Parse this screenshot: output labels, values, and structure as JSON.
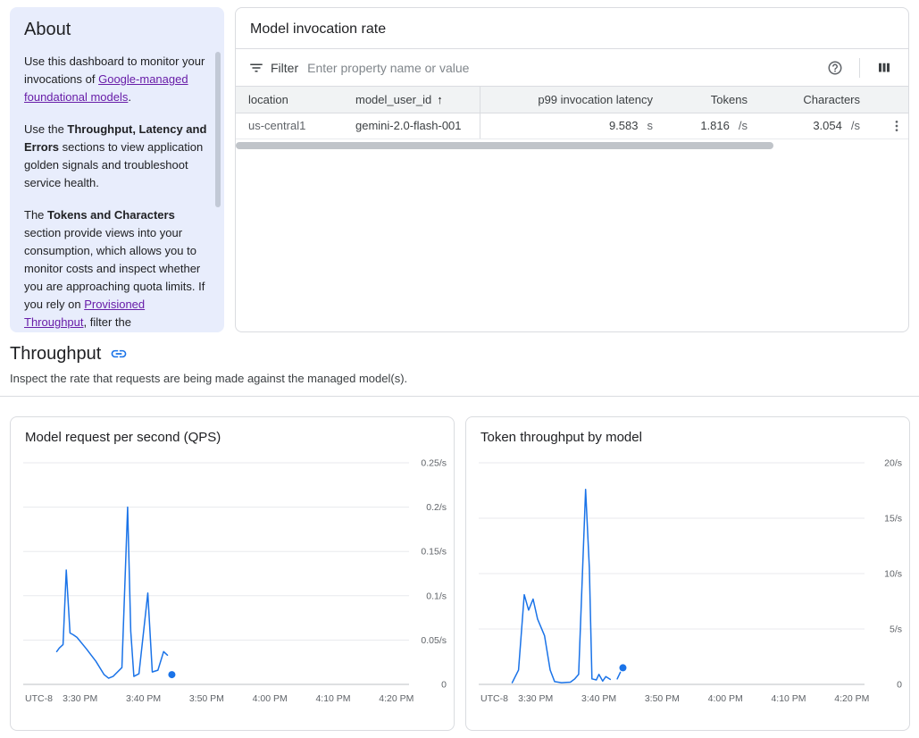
{
  "about": {
    "title": "About",
    "p1": {
      "prefix": "Use this dashboard to monitor your invocations of ",
      "link": "Google-managed foundational models",
      "suffix": "."
    },
    "p2": {
      "prefix": "Use the ",
      "bold": "Throughput, Latency and Errors",
      "suffix": " sections to view application golden signals and troubleshoot service health."
    },
    "p3": {
      "prefix": "The ",
      "bold": "Tokens and Characters",
      "mid": " section provide views into your consumption, which allows you to monitor costs and inspect whether you are approaching quota limits. If you rely on ",
      "link": "Provisioned Throughput",
      "suffix": ", filter the"
    }
  },
  "invocation": {
    "title": "Model invocation rate",
    "filter": {
      "label": "Filter",
      "placeholder": "Enter property name or value"
    },
    "table": {
      "headers": [
        "location",
        "model_user_id",
        "p99 invocation latency",
        "Tokens",
        "Characters"
      ],
      "sort_icon": "↑",
      "row": {
        "location": "us-central1",
        "model": "gemini-2.0-flash-001",
        "p99_value": "9.583",
        "p99_unit": "s",
        "tokens_value": "1.816",
        "tokens_unit": "/s",
        "chars_value": "3.054",
        "chars_unit": "/s"
      }
    }
  },
  "throughput": {
    "title": "Throughput",
    "description": "Inspect the rate that requests are being made against the managed model(s)."
  },
  "colors": {
    "accent_blue": "#1a73e8",
    "link_purple": "#681da8",
    "about_bg": "#e8edfc",
    "table_header_bg": "#f1f3f4"
  },
  "chart_data": [
    {
      "type": "line",
      "title": "Model request per second (QPS)",
      "tz_label": "UTC-8",
      "x_unit": "minutes after 3:00 PM",
      "xlim": [
        21,
        82
      ],
      "ylim": [
        0,
        0.25
      ],
      "x_ticks": [
        {
          "v": 30,
          "label": "3:30 PM"
        },
        {
          "v": 40,
          "label": "3:40 PM"
        },
        {
          "v": 50,
          "label": "3:50 PM"
        },
        {
          "v": 60,
          "label": "4:00 PM"
        },
        {
          "v": 70,
          "label": "4:10 PM"
        },
        {
          "v": 80,
          "label": "4:20 PM"
        }
      ],
      "y_ticks": [
        {
          "v": 0,
          "label": "0"
        },
        {
          "v": 0.05,
          "label": "0.05/s"
        },
        {
          "v": 0.1,
          "label": "0.1/s"
        },
        {
          "v": 0.15,
          "label": "0.15/s"
        },
        {
          "v": 0.2,
          "label": "0.2/s"
        },
        {
          "v": 0.25,
          "label": "0.25/s"
        }
      ],
      "grid": true,
      "legend": "none",
      "line_color": "#1a73e8",
      "segments": [
        [
          [
            26.3,
            0.037
          ],
          [
            26.7,
            0.041
          ],
          [
            27.3,
            0.045
          ],
          [
            27.8,
            0.129
          ],
          [
            28.4,
            0.058
          ],
          [
            28.9,
            0.056
          ],
          [
            29.5,
            0.053
          ],
          [
            31,
            0.04
          ],
          [
            32.5,
            0.026
          ],
          [
            33.8,
            0.011
          ],
          [
            34.5,
            0.007
          ],
          [
            35.2,
            0.009
          ],
          [
            36.6,
            0.019
          ],
          [
            37.5,
            0.2
          ],
          [
            38,
            0.06
          ],
          [
            38.5,
            0.009
          ],
          [
            39.3,
            0.012
          ],
          [
            40.7,
            0.103
          ],
          [
            41.4,
            0.014
          ],
          [
            42.3,
            0.016
          ],
          [
            43.2,
            0.037
          ],
          [
            43.8,
            0.033
          ]
        ],
        [
          [
            44.5,
            0.011
          ]
        ]
      ]
    },
    {
      "type": "line",
      "title": "Token throughput by model",
      "tz_label": "UTC-8",
      "x_unit": "minutes after 3:00 PM",
      "xlim": [
        21,
        82
      ],
      "ylim": [
        0,
        20
      ],
      "x_ticks": [
        {
          "v": 30,
          "label": "3:30 PM"
        },
        {
          "v": 40,
          "label": "3:40 PM"
        },
        {
          "v": 50,
          "label": "3:50 PM"
        },
        {
          "v": 60,
          "label": "4:00 PM"
        },
        {
          "v": 70,
          "label": "4:10 PM"
        },
        {
          "v": 80,
          "label": "4:20 PM"
        }
      ],
      "y_ticks": [
        {
          "v": 0,
          "label": "0"
        },
        {
          "v": 5,
          "label": "5/s"
        },
        {
          "v": 10,
          "label": "10/s"
        },
        {
          "v": 15,
          "label": "15/s"
        },
        {
          "v": 20,
          "label": "20/s"
        }
      ],
      "grid": true,
      "legend": "none",
      "line_color": "#1a73e8",
      "segments": [
        [
          [
            26.3,
            0.15
          ],
          [
            27.3,
            1.3
          ],
          [
            28.2,
            8.1
          ],
          [
            28.9,
            6.7
          ],
          [
            29.6,
            7.7
          ],
          [
            30.3,
            5.9
          ],
          [
            31.4,
            4.4
          ],
          [
            32.3,
            1.3
          ],
          [
            33,
            0.25
          ],
          [
            34.1,
            0.15
          ],
          [
            35.5,
            0.2
          ],
          [
            36.2,
            0.5
          ],
          [
            36.8,
            0.9
          ],
          [
            37.9,
            17.6
          ],
          [
            38.5,
            10.5
          ],
          [
            38.9,
            0.5
          ],
          [
            39.6,
            0.4
          ],
          [
            40,
            0.9
          ],
          [
            40.6,
            0.3
          ],
          [
            41.1,
            0.7
          ],
          [
            41.8,
            0.45
          ]
        ],
        [
          [
            42.9,
            0.5
          ],
          [
            43.4,
            1.1
          ]
        ],
        [
          [
            43.8,
            1.5
          ]
        ]
      ]
    }
  ]
}
